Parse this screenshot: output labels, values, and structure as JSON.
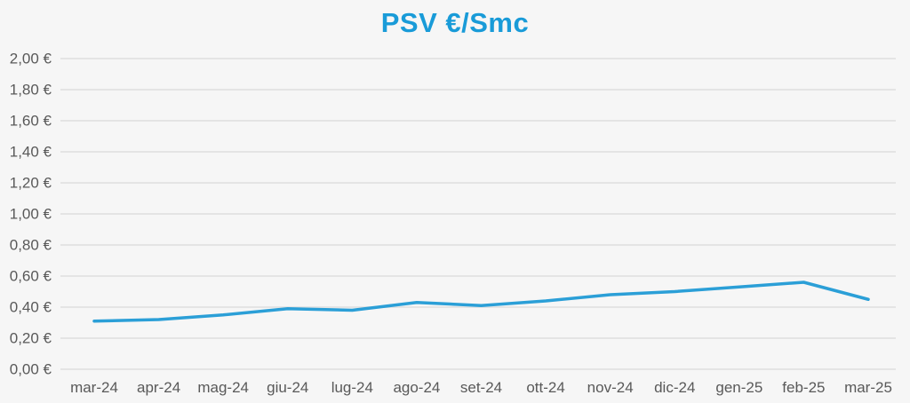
{
  "title": "PSV €/Smc",
  "colors": {
    "background": "#f6f6f6",
    "title": "#199bd8",
    "line": "#2b9fd7",
    "grid": "#e4e4e4",
    "axis_text": "#595959"
  },
  "chart_data": {
    "type": "line",
    "title": "PSV €/Smc",
    "categories": [
      "mar-24",
      "apr-24",
      "mag-24",
      "giu-24",
      "lug-24",
      "ago-24",
      "set-24",
      "ott-24",
      "nov-24",
      "dic-24",
      "gen-25",
      "feb-25",
      "mar-25"
    ],
    "series": [
      {
        "name": "PSV",
        "values": [
          0.31,
          0.32,
          0.35,
          0.39,
          0.38,
          0.43,
          0.41,
          0.44,
          0.48,
          0.5,
          0.53,
          0.56,
          0.45
        ]
      }
    ],
    "xlabel": "",
    "ylabel": "",
    "ylim": [
      0,
      2.0
    ],
    "ytick_step": 0.2,
    "ytick_labels": [
      "0,00 €",
      "0,20 €",
      "0,40 €",
      "0,60 €",
      "0,80 €",
      "1,00 €",
      "1,20 €",
      "1,40 €",
      "1,60 €",
      "1,80 €",
      "2,00 €"
    ],
    "grid": true,
    "legend_position": "none"
  }
}
